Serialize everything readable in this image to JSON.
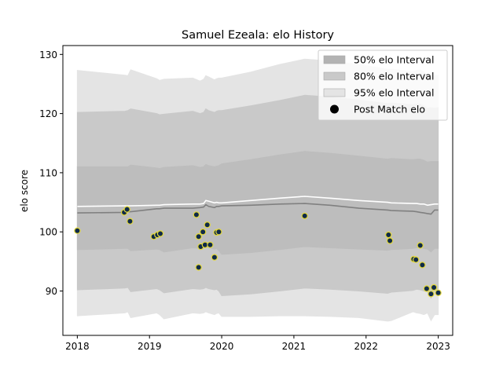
{
  "chart_data": {
    "type": "line",
    "title": "Samuel Ezeala: elo History",
    "xlabel": "",
    "ylabel": "elo score",
    "xlim": [
      2017.8,
      2023.2
    ],
    "ylim": [
      82.5,
      131.5
    ],
    "xticks": [
      2018,
      2019,
      2020,
      2021,
      2022,
      2023
    ],
    "yticks": [
      90,
      100,
      110,
      120,
      130
    ],
    "legend_position": "top-right",
    "legend": [
      {
        "label": "50% elo Interval",
        "kind": "band",
        "color": "#b3b3b3"
      },
      {
        "label": "80% elo Interval",
        "kind": "band",
        "color": "#c9c9c9"
      },
      {
        "label": "95% elo Interval",
        "kind": "band",
        "color": "#e4e4e4"
      },
      {
        "label": "Post Match elo",
        "kind": "marker",
        "color": "#000000"
      }
    ],
    "x": [
      2018.0,
      2018.66,
      2018.7,
      2018.74,
      2019.1,
      2019.14,
      2019.2,
      2019.6,
      2019.7,
      2019.75,
      2019.78,
      2019.82,
      2019.9,
      2019.93,
      2019.96,
      2020.0,
      2020.4,
      2020.8,
      2021.15,
      2021.5,
      2021.9,
      2022.3,
      2022.35,
      2022.65,
      2022.7,
      2022.75,
      2022.8,
      2022.85,
      2022.9,
      2022.95,
      2023.0
    ],
    "series": [
      {
        "kind": "band",
        "legend": "95% elo Interval",
        "color": "#e4e4e4",
        "lower": [
          85.8,
          86.3,
          86.5,
          85.5,
          86.3,
          86.0,
          85.3,
          86.3,
          86.2,
          86.3,
          86.5,
          86.3,
          86.0,
          86.2,
          86.3,
          85.7,
          85.7,
          85.8,
          85.8,
          85.7,
          85.5,
          84.9,
          85.0,
          86.5,
          86.3,
          86.2,
          86.0,
          86.3,
          85.0,
          86.0,
          86.0
        ],
        "upper": [
          127.3,
          126.5,
          126.4,
          127.4,
          125.9,
          125.6,
          125.8,
          126.0,
          125.5,
          125.8,
          126.4,
          126.2,
          125.7,
          125.9,
          126.0,
          126.0,
          127.0,
          128.3,
          129.2,
          128.9,
          128.3,
          127.5,
          127.5,
          127.1,
          127.3,
          127.4,
          127.0,
          126.4,
          126.6,
          126.4,
          126.5
        ]
      },
      {
        "kind": "band",
        "legend": "80% elo Interval",
        "color": "#c9c9c9",
        "lower": [
          90.2,
          90.5,
          90.6,
          89.9,
          90.4,
          90.2,
          89.7,
          90.4,
          90.3,
          90.4,
          90.6,
          90.4,
          90.2,
          90.3,
          90.0,
          89.2,
          89.5,
          90.0,
          90.5,
          90.3,
          90.0,
          89.6,
          89.8,
          90.1,
          90.3,
          90.2,
          90.0,
          89.9,
          88.8,
          90.0,
          90.0
        ],
        "upper": [
          120.2,
          120.4,
          120.5,
          120.8,
          120.0,
          119.8,
          119.9,
          120.4,
          120.0,
          120.2,
          120.8,
          120.5,
          120.2,
          120.4,
          120.5,
          120.5,
          121.3,
          122.2,
          123.1,
          122.8,
          122.3,
          121.7,
          121.8,
          121.5,
          121.6,
          121.6,
          121.3,
          120.9,
          121.0,
          120.9,
          121.0
        ]
      },
      {
        "kind": "band",
        "legend": "50% elo Interval",
        "color": "#bdbdbd",
        "lower": [
          97.0,
          97.2,
          97.2,
          96.8,
          97.1,
          97.0,
          96.6,
          97.3,
          97.2,
          97.3,
          97.5,
          97.3,
          97.1,
          97.2,
          96.8,
          96.2,
          96.5,
          97.0,
          97.5,
          97.3,
          97.1,
          96.9,
          97.0,
          97.2,
          97.3,
          97.3,
          97.2,
          97.1,
          96.6,
          97.2,
          97.2
        ],
        "upper": [
          111.0,
          111.0,
          111.0,
          111.3,
          110.8,
          110.7,
          110.9,
          111.2,
          110.9,
          111.0,
          111.4,
          111.2,
          111.0,
          111.1,
          111.2,
          111.5,
          112.2,
          113.0,
          113.6,
          113.3,
          112.8,
          112.3,
          112.4,
          112.2,
          112.3,
          112.3,
          112.1,
          111.8,
          111.9,
          111.9,
          111.9
        ]
      },
      {
        "kind": "line",
        "legend": "",
        "color": "#808080",
        "values": [
          103.2,
          103.3,
          103.4,
          103.4,
          103.9,
          103.9,
          104.0,
          104.0,
          104.1,
          104.2,
          104.6,
          104.3,
          104.1,
          104.3,
          104.3,
          104.4,
          104.5,
          104.7,
          104.8,
          104.5,
          104.0,
          103.7,
          103.6,
          103.5,
          103.4,
          103.3,
          103.2,
          103.1,
          103.0,
          103.7,
          103.7
        ]
      },
      {
        "kind": "line",
        "legend": "",
        "color": "#ffffff",
        "values": [
          104.3,
          104.4,
          104.4,
          104.4,
          104.5,
          104.5,
          104.6,
          104.7,
          104.7,
          104.8,
          105.3,
          105.2,
          104.9,
          105.0,
          104.9,
          104.9,
          105.3,
          105.7,
          106.0,
          105.7,
          105.3,
          105.0,
          104.9,
          104.8,
          104.8,
          104.7,
          104.7,
          104.5,
          104.6,
          104.7,
          104.7
        ]
      },
      {
        "kind": "scatter",
        "legend": "Post Match elo",
        "color": "#0f2a4a",
        "edge": "#e3d83a",
        "x": [
          2018.0,
          2018.65,
          2018.69,
          2018.73,
          2019.06,
          2019.11,
          2019.15,
          2019.65,
          2019.68,
          2019.71,
          2019.74,
          2019.77,
          2019.8,
          2019.84,
          2019.9,
          2019.93,
          2019.96,
          2019.68,
          2021.15,
          2022.31,
          2022.33,
          2022.66,
          2022.69,
          2022.75,
          2022.78,
          2022.84,
          2022.9,
          2022.94,
          2023.0
        ],
        "y": [
          100.2,
          103.3,
          103.8,
          101.8,
          99.2,
          99.5,
          99.7,
          102.9,
          99.2,
          97.5,
          100.0,
          97.8,
          101.2,
          97.8,
          95.7,
          99.9,
          100.0,
          94.0,
          102.7,
          99.5,
          98.5,
          95.4,
          95.3,
          97.7,
          94.4,
          90.4,
          89.5,
          90.6,
          89.7
        ]
      }
    ]
  }
}
